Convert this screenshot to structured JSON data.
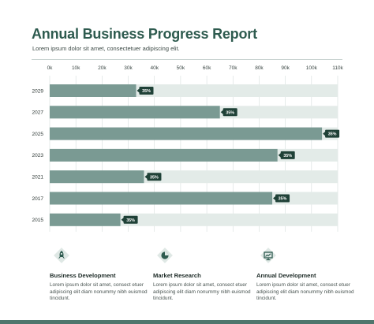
{
  "header": {
    "title": "Annual Business Progress Report",
    "subtitle": "Lorem ipsum dolor sit amet, consectetuer adipiscing elit."
  },
  "chart_data": {
    "type": "bar",
    "orientation": "horizontal",
    "x_ticks": [
      "0k",
      "10k",
      "20k",
      "30k",
      "40k",
      "50k",
      "60k",
      "70k",
      "80k",
      "90k",
      "100k",
      "110k"
    ],
    "xlim": [
      0,
      110000
    ],
    "categories": [
      "2029",
      "2027",
      "2025",
      "2023",
      "2021",
      "2017",
      "2015"
    ],
    "values": [
      33000,
      65000,
      104000,
      87000,
      36000,
      85000,
      27000
    ],
    "labels": [
      "35%",
      "35%",
      "35%",
      "35%",
      "35%",
      "35%",
      "35%"
    ],
    "track_max": 110000,
    "grid": true,
    "colors": {
      "bar": "#7a9a93",
      "track": "#e3ebe8",
      "label_bg": "#1f4137",
      "label_text": "#ffffff",
      "grid": "#d6dedc"
    }
  },
  "features": [
    {
      "icon": "rocket-icon",
      "title": "Business Development",
      "text": "Lorem ipsum dolor sit amet, consect etuer adipiscing elit diam nonummy nibh euismod tincidunt."
    },
    {
      "icon": "pie-chart-icon",
      "title": "Market Research",
      "text": "Lorem ipsum dolor sit amet, consect etuer adipiscing elit diam nonummy nibh euismod tincidunt."
    },
    {
      "icon": "presentation-icon",
      "title": "Annual Development",
      "text": "Lorem ipsum dolor sit amet, consect etuer adipiscing elit diam nonummy nibh euismod tincidunt."
    }
  ],
  "theme": {
    "accent": "#2e5b4f",
    "icon_bg": "#dfe8e5",
    "icon_fg": "#2e5b4f"
  }
}
